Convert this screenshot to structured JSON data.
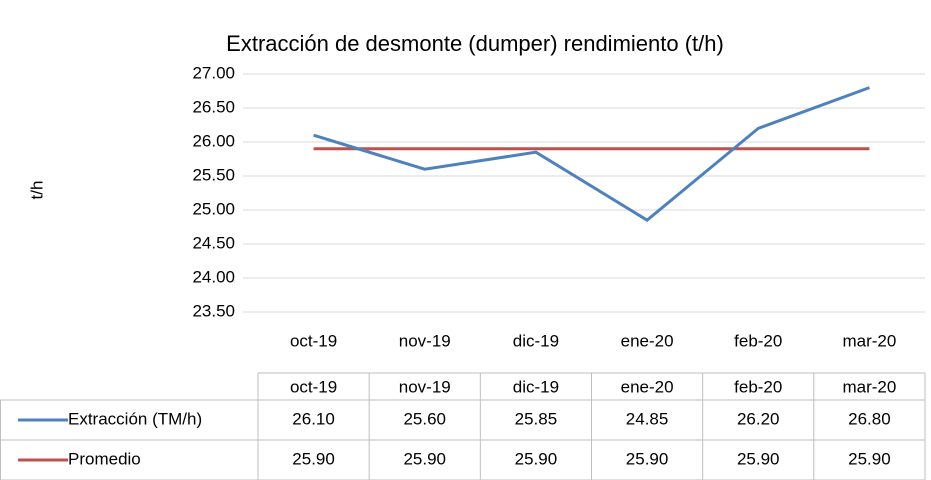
{
  "chart_data": {
    "type": "line",
    "title": "Extracción de desmonte (dumper) rendimiento (t/h)",
    "y_label": "t/h",
    "categories": [
      "oct-19",
      "nov-19",
      "dic-19",
      "ene-20",
      "feb-20",
      "mar-20"
    ],
    "series": [
      {
        "name": "Extracción (TM/h)",
        "color": "#4f81bd",
        "values": [
          26.1,
          25.6,
          25.85,
          24.85,
          26.2,
          26.8
        ],
        "value_labels": [
          "26.10",
          "25.60",
          "25.85",
          "24.85",
          "26.20",
          "26.80"
        ]
      },
      {
        "name": "Promedio",
        "color": "#c0504d",
        "values": [
          25.9,
          25.9,
          25.9,
          25.9,
          25.9,
          25.9
        ],
        "value_labels": [
          "25.90",
          "25.90",
          "25.90",
          "25.90",
          "25.90",
          "25.90"
        ]
      }
    ],
    "ylim": [
      23.5,
      27
    ],
    "yticks": [
      {
        "value": 23.5,
        "label": "23.50"
      },
      {
        "value": 24,
        "label": "24.00"
      },
      {
        "value": 24.5,
        "label": "24.50"
      },
      {
        "value": 25,
        "label": "25.00"
      },
      {
        "value": 25.5,
        "label": "25.50"
      },
      {
        "value": 26,
        "label": "26.00"
      },
      {
        "value": 26.5,
        "label": "26.50"
      },
      {
        "value": 27,
        "label": "27.00"
      }
    ],
    "grid": true,
    "data_table": true
  }
}
